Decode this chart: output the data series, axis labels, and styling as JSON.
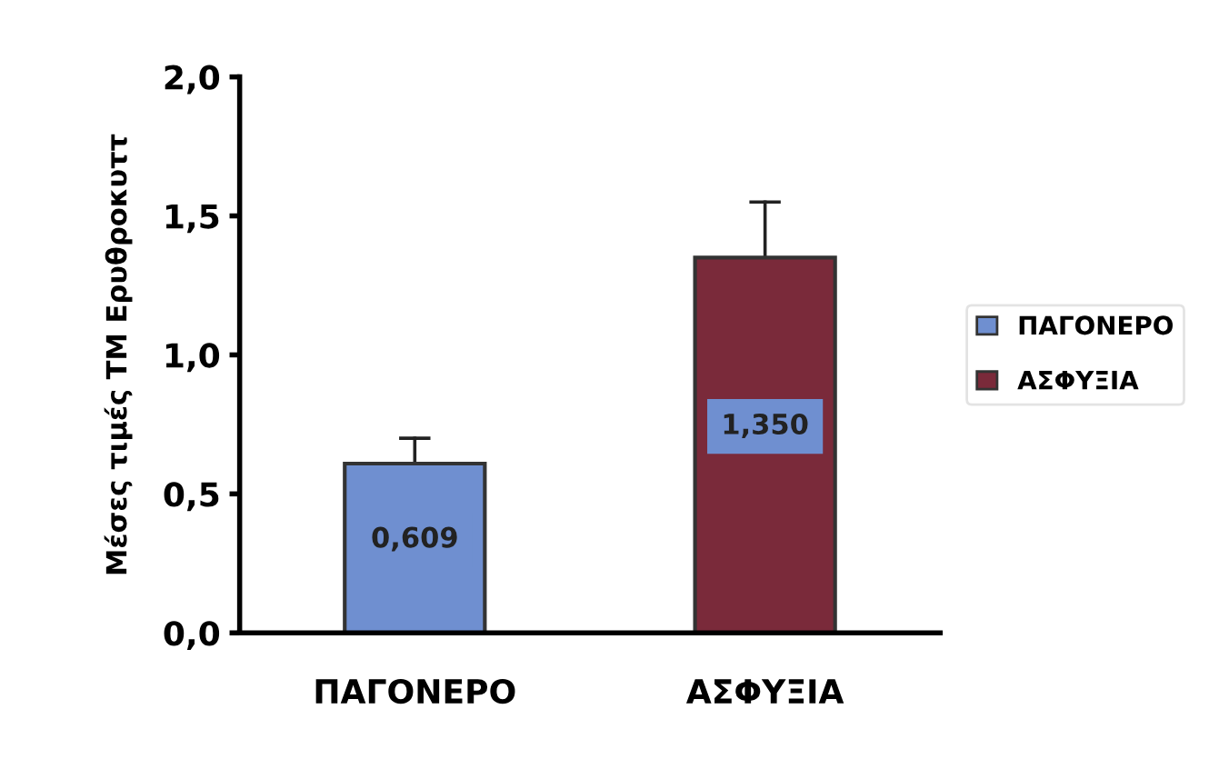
{
  "chart_data": {
    "type": "bar",
    "ylabel": "Μέσες τιμές ΤΜ Ερυθροκυττ",
    "categories": [
      "ΠΑΓΟΝΕΡΟ",
      "ΑΣΦΥΞΙΑ"
    ],
    "series": [
      {
        "name": "ΠΑΓΟΝΕΡΟ",
        "color": "#6f8fd0",
        "values": [
          0.609,
          null
        ],
        "errors": [
          [
            0.609,
            0.7
          ],
          null
        ],
        "value_labels": [
          "0,609",
          null
        ]
      },
      {
        "name": "ΑΣΦΥΞΙΑ",
        "color": "#7a2a3a",
        "values": [
          null,
          1.35
        ],
        "errors": [
          null,
          [
            1.35,
            1.55
          ]
        ],
        "value_labels": [
          null,
          "1,350"
        ]
      }
    ],
    "ylim": [
      0,
      2
    ],
    "yticks": [
      {
        "value": 0,
        "label": "0,0"
      },
      {
        "value": 0.5,
        "label": "0,5"
      },
      {
        "value": 1,
        "label": "1,0"
      },
      {
        "value": 1.5,
        "label": "1,5"
      },
      {
        "value": 2,
        "label": "2,0"
      }
    ],
    "grid": false,
    "legend": "right"
  }
}
